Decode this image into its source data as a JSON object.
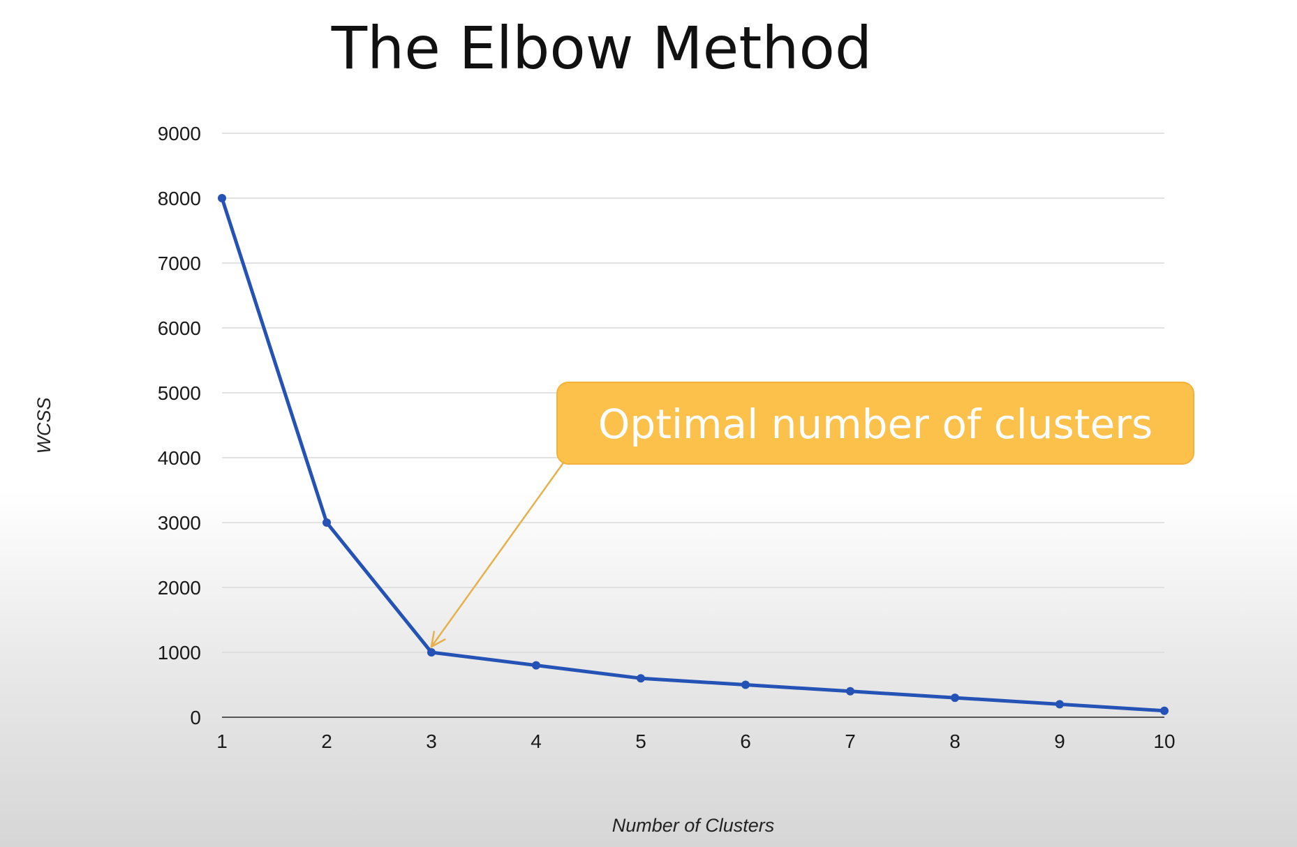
{
  "chart_data": {
    "type": "line",
    "title": "The Elbow Method",
    "xlabel": "Number of Clusters",
    "ylabel": "WCSS",
    "x": [
      1,
      2,
      3,
      4,
      5,
      6,
      7,
      8,
      9,
      10
    ],
    "series": [
      {
        "values": [
          8000,
          3000,
          1000,
          800,
          600,
          500,
          400,
          300,
          200,
          100
        ]
      }
    ],
    "y_ticks": [
      "0",
      "1000",
      "2000",
      "3000",
      "4000",
      "5000",
      "6000",
      "7000",
      "8000",
      "9000"
    ],
    "x_ticks": [
      "1",
      "2",
      "3",
      "4",
      "5",
      "6",
      "7",
      "8",
      "9",
      "10"
    ],
    "ylim": [
      0,
      9000
    ],
    "xlim": [
      1,
      10
    ],
    "grid": true,
    "annotation": {
      "text": "Optimal number of clusters",
      "points_to_x": 3,
      "points_to_y": 1000
    },
    "colors": {
      "series": "#2452b5",
      "annotation_box": "#fcc14b",
      "annotation_border": "#f3b13a",
      "annotation_arrow": "#e8b04a"
    }
  }
}
